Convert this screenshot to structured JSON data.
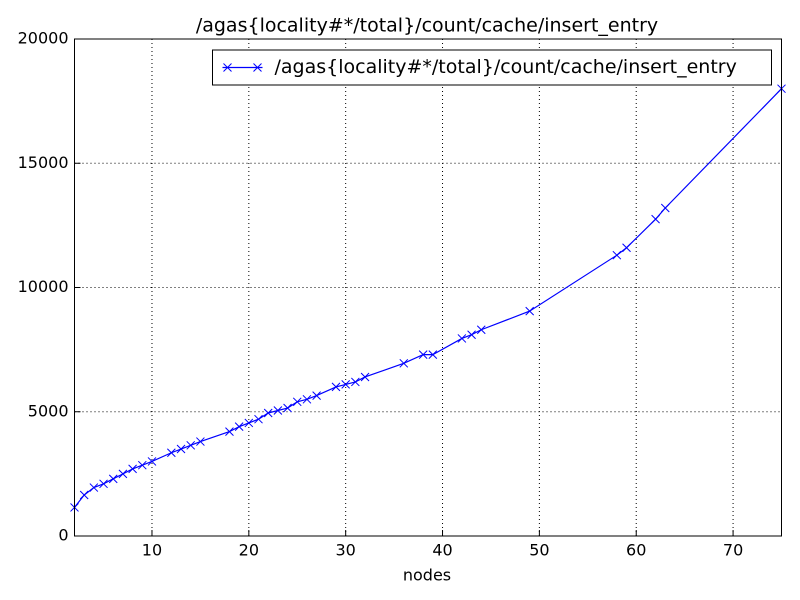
{
  "chart_data": {
    "type": "line",
    "title": "/agas{locality#*/total}/count/cache/insert_entry",
    "x_label": "nodes",
    "x": [
      2,
      3,
      4,
      5,
      6,
      7,
      8,
      9,
      10,
      12,
      13,
      14,
      15,
      18,
      19,
      20,
      21,
      22,
      23,
      24,
      25,
      26,
      27,
      29,
      30,
      31,
      32,
      36,
      38,
      39,
      42,
      43,
      44,
      49,
      58,
      59,
      62,
      63,
      75
    ],
    "series": [
      {
        "name": "/agas{locality#*/total}/count/cache/insert_entry",
        "color": "#0000ff",
        "values": [
          1150,
          1650,
          1950,
          2100,
          2300,
          2500,
          2700,
          2850,
          3000,
          3350,
          3500,
          3650,
          3800,
          4200,
          4400,
          4550,
          4700,
          4950,
          5050,
          5150,
          5400,
          5500,
          5650,
          6000,
          6100,
          6200,
          6400,
          6950,
          7300,
          7300,
          7950,
          8100,
          8300,
          9050,
          11300,
          11600,
          12750,
          13200,
          18000
        ]
      }
    ],
    "xlim": [
      2,
      75
    ],
    "xticks": [
      10,
      20,
      30,
      40,
      50,
      60,
      70
    ],
    "ylim": [
      0,
      20000
    ],
    "yticks": [
      0,
      5000,
      10000,
      15000,
      20000
    ],
    "grid": true,
    "legend": "upper right"
  }
}
